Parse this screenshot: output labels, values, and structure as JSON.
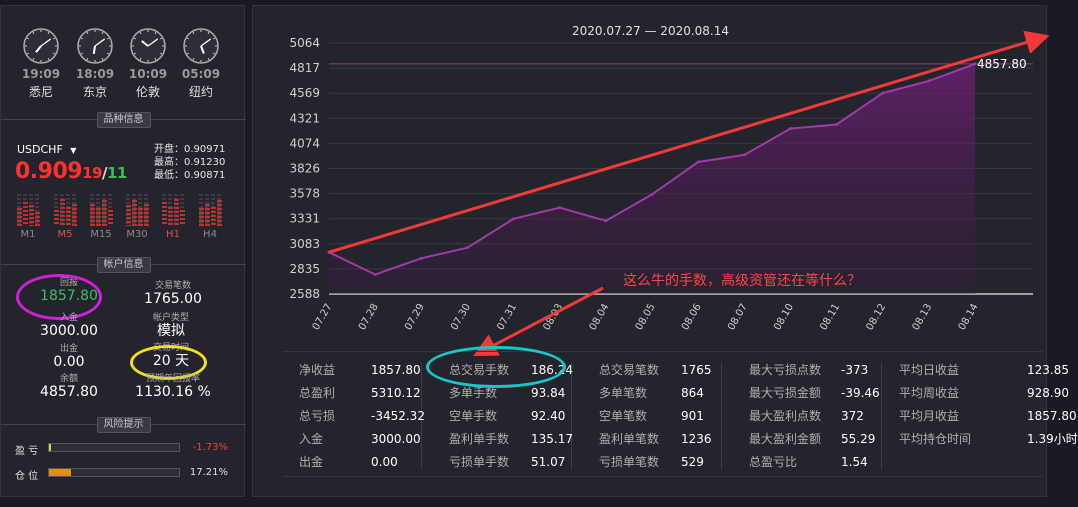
{
  "clocks": [
    {
      "time": "19:09",
      "city": "悉尼",
      "hour": 7.15
    },
    {
      "time": "18:09",
      "city": "东京",
      "hour": 6.15
    },
    {
      "time": "10:09",
      "city": "伦敦",
      "hour": 10.15
    },
    {
      "time": "05:09",
      "city": "纽约",
      "hour": 5.15
    }
  ],
  "product": {
    "section_title": "品种信息",
    "symbol": "USDCHF",
    "price_main": "0.909",
    "price_bid_tail": "19",
    "price_sep": "/",
    "price_ask_tail": "11",
    "open_label": "开盘：",
    "open": "0.90971",
    "high_label": "最高：",
    "high": "0.91230",
    "low_label": "最低：",
    "low": "0.90871",
    "timeframes": [
      "M1",
      "M5",
      "M15",
      "M30",
      "H1",
      "H4"
    ]
  },
  "account": {
    "section_title": "帐户信息",
    "return_label": "回报",
    "return_value": "1857.80",
    "trades_label": "交易笔数",
    "trades_value": "1765.00",
    "deposit_label": "入金",
    "deposit_value": "3000.00",
    "type_label": "帐户类型",
    "type_value": "模拟",
    "withdraw_label": "出金",
    "withdraw_value": "0.00",
    "time_label": "交易时间",
    "time_value": "20 天",
    "balance_label": "余额",
    "balance_value": "4857.80",
    "annual_label": "预期年回报率",
    "annual_value": "1130.16 %"
  },
  "risk": {
    "section_title": "风险提示",
    "pnl_label": "盈  亏",
    "pnl_value": "-1.73%",
    "pnl_fill": 0.017,
    "position_label": "仓  位",
    "position_value": "17.21%",
    "position_fill": 0.172
  },
  "annotation": "这么牛的手数，高级资管还在等什么？",
  "chart_data": {
    "type": "area",
    "title": "2020.07.27 — 2020.08.14",
    "categories": [
      "07.27",
      "07.28",
      "07.29",
      "07.30",
      "07.31",
      "08.03",
      "08.04",
      "08.05",
      "08.06",
      "08.07",
      "08.10",
      "08.11",
      "08.12",
      "08.13",
      "08.14"
    ],
    "values": [
      3000,
      2780,
      2940,
      3045,
      3330,
      3440,
      3310,
      3570,
      3890,
      3960,
      4220,
      4260,
      4570,
      4690,
      4857.8
    ],
    "yticks": [
      "5064",
      "4817",
      "4569",
      "4321",
      "4074",
      "3826",
      "3578",
      "3331",
      "3083",
      "2835",
      "2588"
    ],
    "ylim": [
      2588,
      5064
    ],
    "last_label": "4857.80",
    "grid": true,
    "colors": {
      "line": "#a03aa8",
      "fill": "#6a2070",
      "ref_line": "#9a3a8a",
      "annotation": "#f03a3a"
    }
  },
  "stats": [
    [
      [
        "净收益",
        "1857.80"
      ],
      [
        "总盈利",
        "5310.12"
      ],
      [
        "总亏损",
        "-3452.32"
      ],
      [
        "入金",
        "3000.00"
      ],
      [
        "出金",
        "0.00"
      ]
    ],
    [
      [
        "总交易手数",
        "186.24"
      ],
      [
        "多单手数",
        "93.84"
      ],
      [
        "空单手数",
        "92.40"
      ],
      [
        "盈利单手数",
        "135.17"
      ],
      [
        "亏损单手数",
        "51.07"
      ]
    ],
    [
      [
        "总交易笔数",
        "1765"
      ],
      [
        "多单笔数",
        "864"
      ],
      [
        "空单笔数",
        "901"
      ],
      [
        "盈利单笔数",
        "1236"
      ],
      [
        "亏损单笔数",
        "529"
      ]
    ],
    [
      [
        "最大亏损点数",
        "-373"
      ],
      [
        "最大亏损金额",
        "-39.46"
      ],
      [
        "最大盈利点数",
        "372"
      ],
      [
        "最大盈利金额",
        "55.29"
      ],
      [
        "总盈亏比",
        "1.54"
      ]
    ],
    [
      [
        "平均日收益",
        "123.85"
      ],
      [
        "平均周收益",
        "928.90"
      ],
      [
        "平均月收益",
        "1857.80"
      ],
      [
        "平均持仓时间",
        "1.39小时"
      ]
    ]
  ]
}
